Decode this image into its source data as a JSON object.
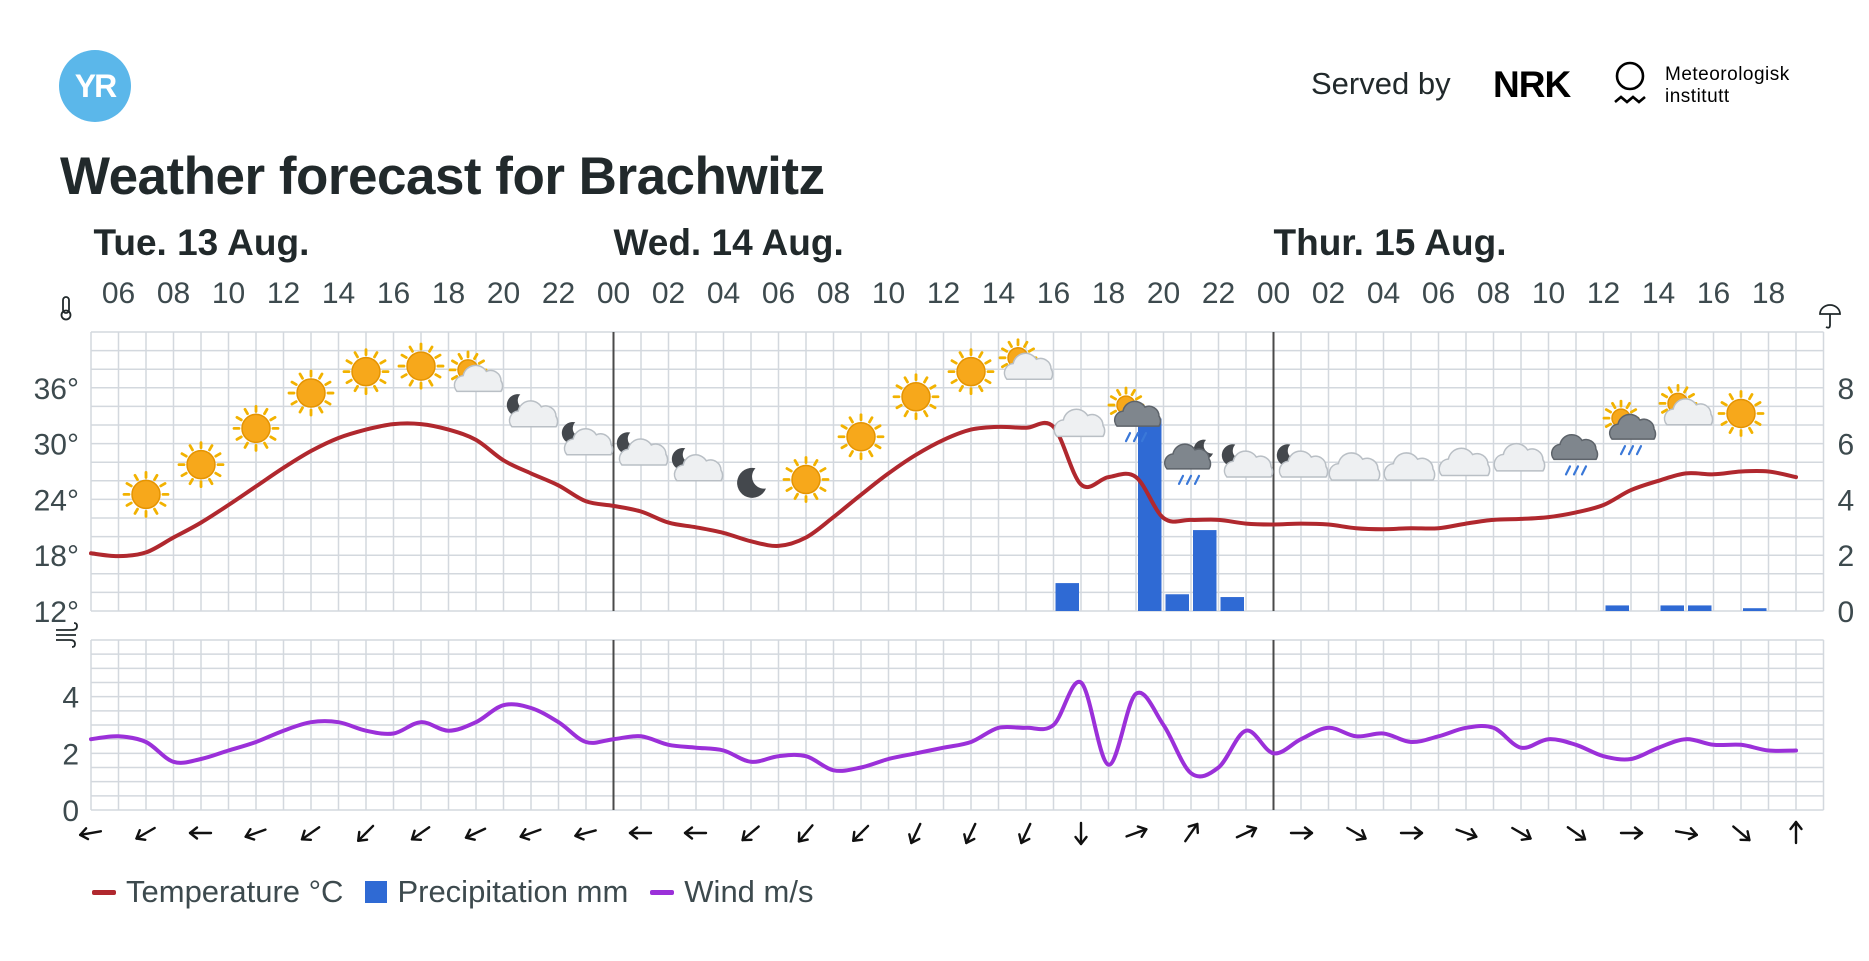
{
  "header": {
    "logo_text": "YR",
    "served_by": "Served by",
    "nrk_logo": "NRK",
    "met_logo_line1": "Meteorologisk",
    "met_logo_line2": "institutt"
  },
  "title": "Weather forecast for Brachwitz",
  "colors": {
    "temperature": "#b0282e",
    "precipitation": "#2f6ad4",
    "wind": "#9b30d9",
    "grid": "#d3d8de",
    "day_divider": "#4a4a4a"
  },
  "legend": [
    {
      "label": "Temperature °C",
      "kind": "line",
      "color": "#b0282e"
    },
    {
      "label": "Precipitation mm",
      "kind": "box",
      "color": "#2f6ad4"
    },
    {
      "label": "Wind m/s",
      "kind": "line",
      "color": "#9b30d9"
    }
  ],
  "chart_data": {
    "type": "line",
    "start_hour": 5,
    "hours_count": 63,
    "days": [
      {
        "label": "Tue. 13 Aug.",
        "at_hour": 6
      },
      {
        "label": "Wed. 14 Aug.",
        "at_hour": 24
      },
      {
        "label": "Thur. 15 Aug.",
        "at_hour": 48
      }
    ],
    "day_dividers_at_hour": [
      24,
      48
    ],
    "hour_ticks": [
      {
        "h": 6,
        "label": "06"
      },
      {
        "h": 8,
        "label": "08"
      },
      {
        "h": 10,
        "label": "10"
      },
      {
        "h": 12,
        "label": "12"
      },
      {
        "h": 14,
        "label": "14"
      },
      {
        "h": 16,
        "label": "16"
      },
      {
        "h": 18,
        "label": "18"
      },
      {
        "h": 20,
        "label": "20"
      },
      {
        "h": 22,
        "label": "22"
      },
      {
        "h": 24,
        "label": "00"
      },
      {
        "h": 26,
        "label": "02"
      },
      {
        "h": 28,
        "label": "04"
      },
      {
        "h": 30,
        "label": "06"
      },
      {
        "h": 32,
        "label": "08"
      },
      {
        "h": 34,
        "label": "10"
      },
      {
        "h": 36,
        "label": "12"
      },
      {
        "h": 38,
        "label": "14"
      },
      {
        "h": 40,
        "label": "16"
      },
      {
        "h": 42,
        "label": "18"
      },
      {
        "h": 44,
        "label": "20"
      },
      {
        "h": 46,
        "label": "22"
      },
      {
        "h": 48,
        "label": "00"
      },
      {
        "h": 50,
        "label": "02"
      },
      {
        "h": 52,
        "label": "04"
      },
      {
        "h": 54,
        "label": "06"
      },
      {
        "h": 56,
        "label": "08"
      },
      {
        "h": 58,
        "label": "10"
      },
      {
        "h": 60,
        "label": "12"
      },
      {
        "h": 62,
        "label": "14"
      },
      {
        "h": 64,
        "label": "16"
      },
      {
        "h": 66,
        "label": "18"
      }
    ],
    "temp_axis": {
      "ylim": [
        12,
        42
      ],
      "ticks": [
        {
          "v": 36,
          "label": "36°"
        },
        {
          "v": 30,
          "label": "30°"
        },
        {
          "v": 24,
          "label": "24°"
        },
        {
          "v": 18,
          "label": "18°"
        },
        {
          "v": 12,
          "label": "12°"
        }
      ]
    },
    "precip_axis": {
      "ylim": [
        0,
        10
      ],
      "ticks": [
        {
          "v": 8,
          "label": "8"
        },
        {
          "v": 6,
          "label": "6"
        },
        {
          "v": 4,
          "label": "4"
        },
        {
          "v": 2,
          "label": "2"
        },
        {
          "v": 0,
          "label": "0"
        }
      ]
    },
    "wind_axis": {
      "ylim": [
        0,
        6
      ],
      "ticks": [
        {
          "v": 4,
          "label": "4"
        },
        {
          "v": 2,
          "label": "2"
        },
        {
          "v": 0,
          "label": "0"
        }
      ]
    },
    "temperature": [
      {
        "h": 5,
        "v": 18.2
      },
      {
        "h": 6,
        "v": 17.9
      },
      {
        "h": 7,
        "v": 18.3
      },
      {
        "h": 8,
        "v": 19.9
      },
      {
        "h": 9,
        "v": 21.5
      },
      {
        "h": 10,
        "v": 23.4
      },
      {
        "h": 11,
        "v": 25.4
      },
      {
        "h": 12,
        "v": 27.4
      },
      {
        "h": 13,
        "v": 29.2
      },
      {
        "h": 14,
        "v": 30.6
      },
      {
        "h": 15,
        "v": 31.5
      },
      {
        "h": 16,
        "v": 32.1
      },
      {
        "h": 17,
        "v": 32.1
      },
      {
        "h": 18,
        "v": 31.5
      },
      {
        "h": 19,
        "v": 30.4
      },
      {
        "h": 20,
        "v": 28.2
      },
      {
        "h": 21,
        "v": 26.8
      },
      {
        "h": 22,
        "v": 25.5
      },
      {
        "h": 23,
        "v": 23.8
      },
      {
        "h": 24,
        "v": 23.3
      },
      {
        "h": 25,
        "v": 22.7
      },
      {
        "h": 26,
        "v": 21.5
      },
      {
        "h": 27,
        "v": 21.0
      },
      {
        "h": 28,
        "v": 20.4
      },
      {
        "h": 29,
        "v": 19.5
      },
      {
        "h": 30,
        "v": 19.0
      },
      {
        "h": 31,
        "v": 19.9
      },
      {
        "h": 32,
        "v": 22.1
      },
      {
        "h": 33,
        "v": 24.5
      },
      {
        "h": 34,
        "v": 26.8
      },
      {
        "h": 35,
        "v": 28.8
      },
      {
        "h": 36,
        "v": 30.4
      },
      {
        "h": 37,
        "v": 31.5
      },
      {
        "h": 38,
        "v": 31.8
      },
      {
        "h": 39,
        "v": 31.7
      },
      {
        "h": 40,
        "v": 31.8
      },
      {
        "h": 41,
        "v": 25.6
      },
      {
        "h": 42,
        "v": 26.4
      },
      {
        "h": 43,
        "v": 26.4
      },
      {
        "h": 44,
        "v": 22.0
      },
      {
        "h": 45,
        "v": 21.8
      },
      {
        "h": 46,
        "v": 21.8
      },
      {
        "h": 47,
        "v": 21.4
      },
      {
        "h": 48,
        "v": 21.3
      },
      {
        "h": 49,
        "v": 21.4
      },
      {
        "h": 50,
        "v": 21.3
      },
      {
        "h": 51,
        "v": 20.9
      },
      {
        "h": 52,
        "v": 20.8
      },
      {
        "h": 53,
        "v": 20.9
      },
      {
        "h": 54,
        "v": 20.9
      },
      {
        "h": 55,
        "v": 21.4
      },
      {
        "h": 56,
        "v": 21.8
      },
      {
        "h": 57,
        "v": 21.9
      },
      {
        "h": 58,
        "v": 22.1
      },
      {
        "h": 59,
        "v": 22.6
      },
      {
        "h": 60,
        "v": 23.4
      },
      {
        "h": 61,
        "v": 25.0
      },
      {
        "h": 62,
        "v": 26.0
      },
      {
        "h": 63,
        "v": 26.8
      },
      {
        "h": 64,
        "v": 26.7
      },
      {
        "h": 65,
        "v": 27.0
      },
      {
        "h": 66,
        "v": 27.0
      },
      {
        "h": 67,
        "v": 26.4
      }
    ],
    "precipitation": [
      {
        "h": 40,
        "v": 1.0
      },
      {
        "h": 43,
        "v": 6.9
      },
      {
        "h": 44,
        "v": 0.6
      },
      {
        "h": 45,
        "v": 2.9
      },
      {
        "h": 46,
        "v": 0.5
      },
      {
        "h": 60,
        "v": 0.2
      },
      {
        "h": 62,
        "v": 0.2
      },
      {
        "h": 63,
        "v": 0.2
      },
      {
        "h": 65,
        "v": 0.1
      }
    ],
    "wind": [
      {
        "h": 5,
        "v": 2.5
      },
      {
        "h": 6,
        "v": 2.6
      },
      {
        "h": 7,
        "v": 2.4
      },
      {
        "h": 8,
        "v": 1.7
      },
      {
        "h": 9,
        "v": 1.8
      },
      {
        "h": 10,
        "v": 2.1
      },
      {
        "h": 11,
        "v": 2.4
      },
      {
        "h": 12,
        "v": 2.8
      },
      {
        "h": 13,
        "v": 3.1
      },
      {
        "h": 14,
        "v": 3.1
      },
      {
        "h": 15,
        "v": 2.8
      },
      {
        "h": 16,
        "v": 2.7
      },
      {
        "h": 17,
        "v": 3.1
      },
      {
        "h": 18,
        "v": 2.8
      },
      {
        "h": 19,
        "v": 3.1
      },
      {
        "h": 20,
        "v": 3.7
      },
      {
        "h": 21,
        "v": 3.6
      },
      {
        "h": 22,
        "v": 3.1
      },
      {
        "h": 23,
        "v": 2.4
      },
      {
        "h": 24,
        "v": 2.5
      },
      {
        "h": 25,
        "v": 2.6
      },
      {
        "h": 26,
        "v": 2.3
      },
      {
        "h": 27,
        "v": 2.2
      },
      {
        "h": 28,
        "v": 2.1
      },
      {
        "h": 29,
        "v": 1.7
      },
      {
        "h": 30,
        "v": 1.9
      },
      {
        "h": 31,
        "v": 1.9
      },
      {
        "h": 32,
        "v": 1.4
      },
      {
        "h": 33,
        "v": 1.5
      },
      {
        "h": 34,
        "v": 1.8
      },
      {
        "h": 35,
        "v": 2.0
      },
      {
        "h": 36,
        "v": 2.2
      },
      {
        "h": 37,
        "v": 2.4
      },
      {
        "h": 38,
        "v": 2.9
      },
      {
        "h": 39,
        "v": 2.9
      },
      {
        "h": 40,
        "v": 3.0
      },
      {
        "h": 41,
        "v": 4.5
      },
      {
        "h": 42,
        "v": 1.6
      },
      {
        "h": 43,
        "v": 4.1
      },
      {
        "h": 44,
        "v": 3.0
      },
      {
        "h": 45,
        "v": 1.3
      },
      {
        "h": 46,
        "v": 1.5
      },
      {
        "h": 47,
        "v": 2.8
      },
      {
        "h": 48,
        "v": 2.0
      },
      {
        "h": 49,
        "v": 2.5
      },
      {
        "h": 50,
        "v": 2.9
      },
      {
        "h": 51,
        "v": 2.6
      },
      {
        "h": 52,
        "v": 2.7
      },
      {
        "h": 53,
        "v": 2.4
      },
      {
        "h": 54,
        "v": 2.6
      },
      {
        "h": 55,
        "v": 2.9
      },
      {
        "h": 56,
        "v": 2.9
      },
      {
        "h": 57,
        "v": 2.2
      },
      {
        "h": 58,
        "v": 2.5
      },
      {
        "h": 59,
        "v": 2.3
      },
      {
        "h": 60,
        "v": 1.9
      },
      {
        "h": 61,
        "v": 1.8
      },
      {
        "h": 62,
        "v": 2.2
      },
      {
        "h": 63,
        "v": 2.5
      },
      {
        "h": 64,
        "v": 2.3
      },
      {
        "h": 65,
        "v": 2.3
      },
      {
        "h": 66,
        "v": 2.1
      },
      {
        "h": 67,
        "v": 2.1
      }
    ],
    "wind_direction_deg": [
      {
        "h": 5,
        "deg": 80
      },
      {
        "h": 7,
        "deg": 60
      },
      {
        "h": 9,
        "deg": 90
      },
      {
        "h": 11,
        "deg": 70
      },
      {
        "h": 13,
        "deg": 55
      },
      {
        "h": 15,
        "deg": 45
      },
      {
        "h": 17,
        "deg": 55
      },
      {
        "h": 19,
        "deg": 65
      },
      {
        "h": 21,
        "deg": 70
      },
      {
        "h": 23,
        "deg": 75
      },
      {
        "h": 25,
        "deg": 90
      },
      {
        "h": 27,
        "deg": 90
      },
      {
        "h": 29,
        "deg": 50
      },
      {
        "h": 31,
        "deg": 40
      },
      {
        "h": 33,
        "deg": 45
      },
      {
        "h": 35,
        "deg": 25
      },
      {
        "h": 37,
        "deg": 25
      },
      {
        "h": 39,
        "deg": 25
      },
      {
        "h": 41,
        "deg": 0
      },
      {
        "h": 43,
        "deg": 250
      },
      {
        "h": 45,
        "deg": 215
      },
      {
        "h": 47,
        "deg": 245
      },
      {
        "h": 49,
        "deg": 270
      },
      {
        "h": 51,
        "deg": 300
      },
      {
        "h": 53,
        "deg": 270
      },
      {
        "h": 55,
        "deg": 290
      },
      {
        "h": 57,
        "deg": 300
      },
      {
        "h": 59,
        "deg": 305
      },
      {
        "h": 61,
        "deg": 270
      },
      {
        "h": 63,
        "deg": 280
      },
      {
        "h": 65,
        "deg": 310
      },
      {
        "h": 67,
        "deg": 180
      }
    ],
    "weather_symbols": [
      {
        "h": 7,
        "kind": "sun"
      },
      {
        "h": 9,
        "kind": "sun"
      },
      {
        "h": 11,
        "kind": "sun"
      },
      {
        "h": 13,
        "kind": "sun"
      },
      {
        "h": 15,
        "kind": "sun"
      },
      {
        "h": 17,
        "kind": "sun"
      },
      {
        "h": 19,
        "kind": "partsun"
      },
      {
        "h": 21,
        "kind": "partmoon"
      },
      {
        "h": 23,
        "kind": "partmoon"
      },
      {
        "h": 25,
        "kind": "partmoon"
      },
      {
        "h": 27,
        "kind": "partmoon"
      },
      {
        "h": 29,
        "kind": "moon"
      },
      {
        "h": 31,
        "kind": "sun"
      },
      {
        "h": 33,
        "kind": "sun"
      },
      {
        "h": 35,
        "kind": "sun"
      },
      {
        "h": 37,
        "kind": "sun"
      },
      {
        "h": 39,
        "kind": "partsun"
      },
      {
        "h": 41,
        "kind": "cloud"
      },
      {
        "h": 43,
        "kind": "sunrain"
      },
      {
        "h": 45,
        "kind": "moonrain"
      },
      {
        "h": 47,
        "kind": "partmoon"
      },
      {
        "h": 49,
        "kind": "partmoon"
      },
      {
        "h": 51,
        "kind": "cloud"
      },
      {
        "h": 53,
        "kind": "cloud"
      },
      {
        "h": 55,
        "kind": "cloud"
      },
      {
        "h": 57,
        "kind": "cloud"
      },
      {
        "h": 59,
        "kind": "raincloud"
      },
      {
        "h": 61,
        "kind": "sunrain"
      },
      {
        "h": 63,
        "kind": "partsun"
      },
      {
        "h": 65,
        "kind": "sun"
      }
    ]
  }
}
